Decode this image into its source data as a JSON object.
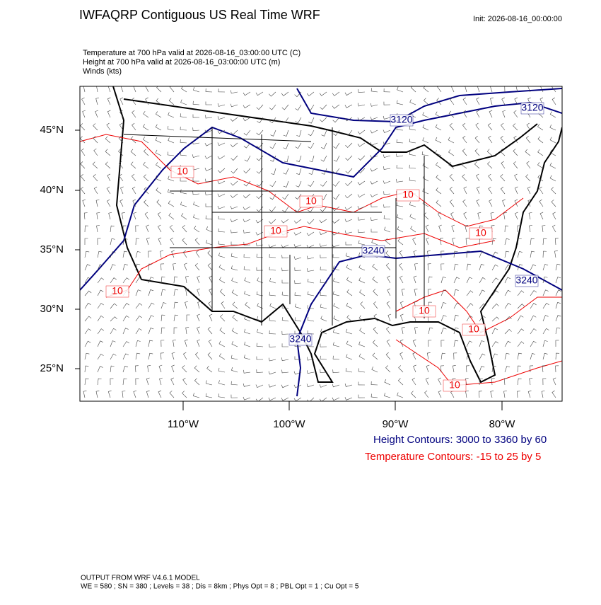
{
  "header": {
    "title": "IWFAQRP Contiguous US Real Time WRF",
    "init": "Init: 2026-08-16_00:00:00",
    "fields": [
      "Temperature at 700 hPa valid at 2026-08-16_03:00:00 UTC   (C)",
      "Height at 700 hPa valid at 2026-08-16_03:00:00 UTC   (m)",
      "Winds   (kts)"
    ]
  },
  "map": {
    "lat_labels": [
      "45°N",
      "40°N",
      "35°N",
      "30°N",
      "25°N"
    ],
    "lon_labels": [
      "110°W",
      "100°W",
      "90°W",
      "80°W"
    ],
    "height_labels": [
      "3120",
      "3120",
      "3240",
      "3240",
      "3240"
    ],
    "temperature_labels": [
      "10",
      "10",
      "10",
      "10",
      "10",
      "10",
      "10",
      "10",
      "10"
    ]
  },
  "legend": {
    "height": "Height Contours: 3000 to 3360 by 60",
    "temperature": "Temperature Contours: -15 to 25 by 5"
  },
  "footer": {
    "model": "OUTPUT FROM WRF V4.6.1 MODEL",
    "settings": "WE = 580 ; SN = 380 ; Levels = 38 ; Dis = 8km ; Phys Opt = 8 ; PBL Opt = 1 ; Cu Opt = 5"
  }
}
